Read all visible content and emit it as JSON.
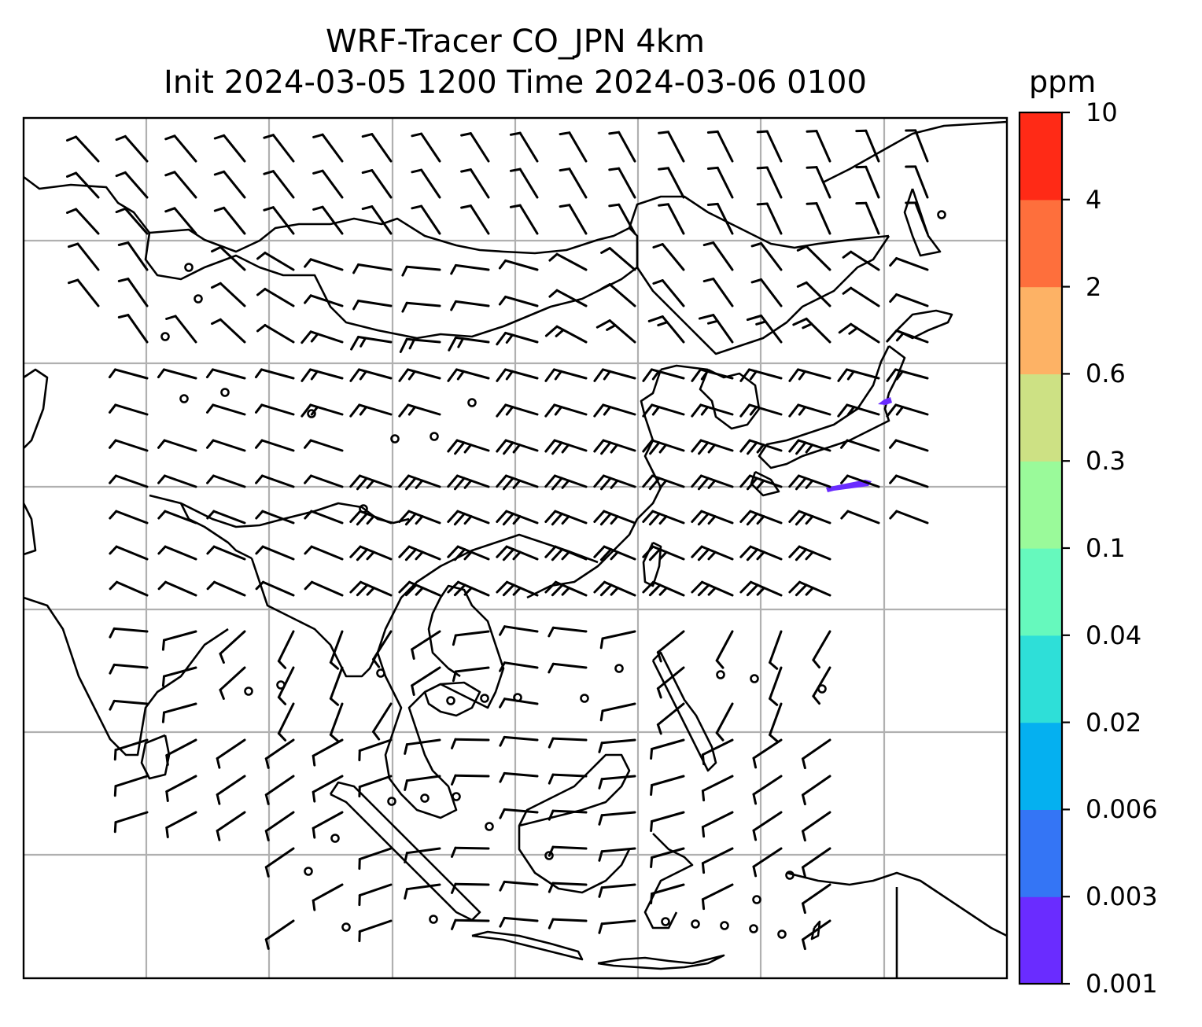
{
  "title_line1": "WRF-Tracer CO_JPN 4km",
  "title_line2": "Init 2024-03-05 1200 Time 2024-03-06 0100",
  "colorbar": {
    "unit": "ppm",
    "ticks": [
      "0.001",
      "0.003",
      "0.006",
      "0.02",
      "0.04",
      "0.1",
      "0.3",
      "0.6",
      "2",
      "4",
      "10"
    ],
    "colors": [
      "#6a2cff",
      "#3475f5",
      "#05b0f0",
      "#2edfd8",
      "#66f9bd",
      "#9afa9a",
      "#cde184",
      "#fdb265",
      "#fe6f3c",
      "#ff2a16"
    ]
  },
  "map": {
    "grid_color": "#b0b0b0",
    "coast_color": "#000000",
    "tracer_color": "#6a2cff"
  }
}
